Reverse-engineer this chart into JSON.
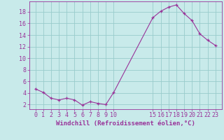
{
  "x": [
    0,
    1,
    2,
    3,
    4,
    5,
    6,
    7,
    8,
    9,
    10,
    15,
    16,
    17,
    18,
    19,
    20,
    21,
    22,
    23
  ],
  "y": [
    4.7,
    4.1,
    3.1,
    2.8,
    3.1,
    2.8,
    1.9,
    2.5,
    2.2,
    2.0,
    4.1,
    17.0,
    18.1,
    18.8,
    19.2,
    17.7,
    16.5,
    14.2,
    13.1,
    12.2
  ],
  "line_color": "#993399",
  "marker_color": "#993399",
  "bg_color": "#c8eaea",
  "grid_color": "#99cccc",
  "xlabel": "Windchill (Refroidissement éolien,°C)",
  "xticks": [
    0,
    1,
    2,
    3,
    4,
    5,
    6,
    7,
    8,
    9,
    10,
    15,
    16,
    17,
    18,
    19,
    20,
    21,
    22,
    23
  ],
  "yticks": [
    2,
    4,
    6,
    8,
    10,
    12,
    14,
    16,
    18
  ],
  "xlim": [
    -0.8,
    23.8
  ],
  "ylim": [
    1.2,
    19.8
  ],
  "xlabel_fontsize": 6.5,
  "tick_fontsize": 6.0,
  "line_width": 0.8,
  "marker_size": 3.0
}
